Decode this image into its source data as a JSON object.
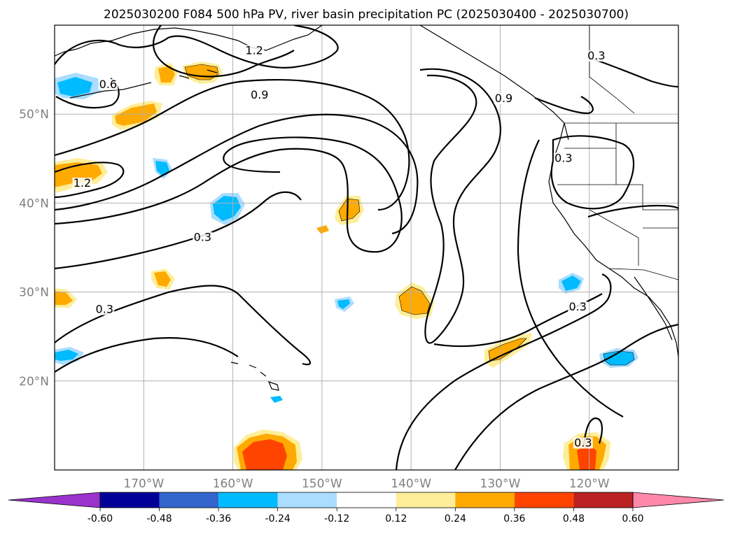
{
  "title": "2025030200 F084 500 hPa PV, river basin precipitation PC (2025030400 - 2025030700)",
  "map": {
    "lon_range": [
      -180,
      -110
    ],
    "lat_range": [
      10,
      60
    ],
    "lon_ticks": [
      {
        "lon": -170,
        "label": "170°W"
      },
      {
        "lon": -160,
        "label": "160°W"
      },
      {
        "lon": -150,
        "label": "150°W"
      },
      {
        "lon": -140,
        "label": "140°W"
      },
      {
        "lon": -130,
        "label": "130°W"
      },
      {
        "lon": -120,
        "label": "120°W"
      }
    ],
    "lat_ticks": [
      {
        "lat": 20,
        "label": "20°N"
      },
      {
        "lat": 30,
        "label": "30°N"
      },
      {
        "lat": 40,
        "label": "40°N"
      },
      {
        "lat": 50,
        "label": "50°N"
      }
    ],
    "grid": true,
    "contour_labels": [
      {
        "text": "0.6",
        "lon": -174.0,
        "lat": 53.1
      },
      {
        "text": "1.2",
        "lon": -157.6,
        "lat": 56.9
      },
      {
        "text": "0.9",
        "lon": -157.0,
        "lat": 51.9
      },
      {
        "text": "1.2",
        "lon": -176.9,
        "lat": 42.0
      },
      {
        "text": "0.3",
        "lon": -163.4,
        "lat": 35.9
      },
      {
        "text": "0.3",
        "lon": -174.4,
        "lat": 27.8
      },
      {
        "text": "0.9",
        "lon": -129.6,
        "lat": 51.5
      },
      {
        "text": "0.3",
        "lon": -119.2,
        "lat": 56.3
      },
      {
        "text": "0.3",
        "lon": -122.9,
        "lat": 44.8
      },
      {
        "text": "0.3",
        "lon": -121.3,
        "lat": 28.1
      },
      {
        "text": "0.3",
        "lon": -120.7,
        "lat": 12.8
      }
    ]
  },
  "colorbar": {
    "levels": [
      "-0.60",
      "-0.48",
      "-0.36",
      "-0.24",
      "-0.12",
      "0.12",
      "0.24",
      "0.36",
      "0.48",
      "0.60"
    ],
    "colors": [
      "#9933cc",
      "#000099",
      "#3366cc",
      "#00bbff",
      "#aaddff",
      "#ffffff",
      "#ffee99",
      "#ffaa00",
      "#ff4400",
      "#bb2222",
      "#ff88aa"
    ],
    "extend": "both"
  }
}
